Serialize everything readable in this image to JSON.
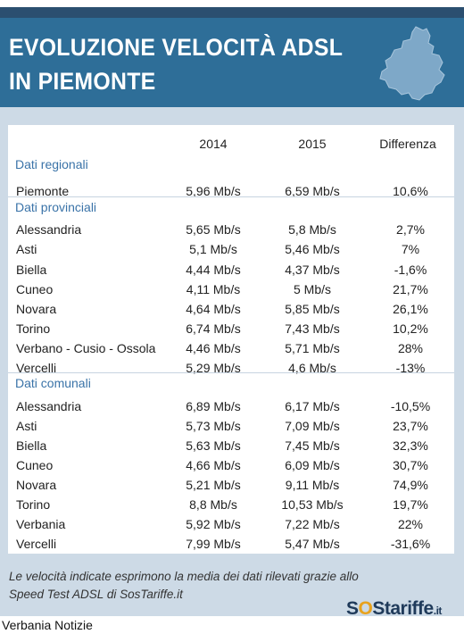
{
  "header": {
    "title_line1": "EVOLUZIONE VELOCITÀ ADSL",
    "title_line2": "IN PIEMONTE"
  },
  "columns": {
    "y2014": "2014",
    "y2015": "2015",
    "diff": "Differenza"
  },
  "sections": [
    {
      "label": "Dati regionali",
      "rows": [
        {
          "name": "Piemonte",
          "v2014": "5,96 Mb/s",
          "v2015": "6,59 Mb/s",
          "diff": "10,6%"
        }
      ]
    },
    {
      "label": "Dati provinciali",
      "rows": [
        {
          "name": "Alessandria",
          "v2014": "5,65 Mb/s",
          "v2015": "5,8 Mb/s",
          "diff": "2,7%"
        },
        {
          "name": "Asti",
          "v2014": "5,1 Mb/s",
          "v2015": "5,46 Mb/s",
          "diff": "7%"
        },
        {
          "name": "Biella",
          "v2014": "4,44 Mb/s",
          "v2015": "4,37 Mb/s",
          "diff": "-1,6%"
        },
        {
          "name": "Cuneo",
          "v2014": "4,11 Mb/s",
          "v2015": "5 Mb/s",
          "diff": "21,7%"
        },
        {
          "name": "Novara",
          "v2014": "4,64 Mb/s",
          "v2015": "5,85 Mb/s",
          "diff": "26,1%"
        },
        {
          "name": "Torino",
          "v2014": "6,74 Mb/s",
          "v2015": "7,43 Mb/s",
          "diff": "10,2%"
        },
        {
          "name": "Verbano - Cusio - Ossola",
          "v2014": "4,46 Mb/s",
          "v2015": "5,71 Mb/s",
          "diff": "28%"
        },
        {
          "name": "Vercelli",
          "v2014": "5,29 Mb/s",
          "v2015": "4,6 Mb/s",
          "diff": "-13%"
        }
      ]
    },
    {
      "label": "Dati comunali",
      "rows": [
        {
          "name": "Alessandria",
          "v2014": "6,89 Mb/s",
          "v2015": "6,17 Mb/s",
          "diff": "-10,5%"
        },
        {
          "name": "Asti",
          "v2014": "5,73 Mb/s",
          "v2015": "7,09 Mb/s",
          "diff": "23,7%"
        },
        {
          "name": "Biella",
          "v2014": "5,63 Mb/s",
          "v2015": "7,45 Mb/s",
          "diff": "32,3%"
        },
        {
          "name": "Cuneo",
          "v2014": "4,66 Mb/s",
          "v2015": "6,09 Mb/s",
          "diff": "30,7%"
        },
        {
          "name": "Novara",
          "v2014": "5,21 Mb/s",
          "v2015": "9,11 Mb/s",
          "diff": "74,9%"
        },
        {
          "name": "Torino",
          "v2014": "8,8 Mb/s",
          "v2015": "10,53 Mb/s",
          "diff": "19,7%"
        },
        {
          "name": "Verbania",
          "v2014": "5,92 Mb/s",
          "v2015": "7,22 Mb/s",
          "diff": "22%"
        },
        {
          "name": "Vercelli",
          "v2014": "7,99 Mb/s",
          "v2015": "5,47 Mb/s",
          "diff": "-31,6%"
        }
      ]
    }
  ],
  "footnote": {
    "line1": "Le velocità indicate esprimono la media dei dati rilevati grazie allo",
    "line2": "Speed Test ADSL di SosTariffe.it"
  },
  "logo": {
    "part1": "S",
    "part2": "O",
    "part3": "S",
    "part4": "tariffe",
    "part5": ".it"
  },
  "credit": "Verbania Notizie",
  "icons": {
    "map": "piemonte-map-icon"
  },
  "colors": {
    "header": "#2e6e98",
    "topbar": "#2b4f70",
    "panel": "#cddae6",
    "section": "#3a73a8",
    "logo_accent": "#e8a21d",
    "logo_text": "#1f3a5a"
  }
}
